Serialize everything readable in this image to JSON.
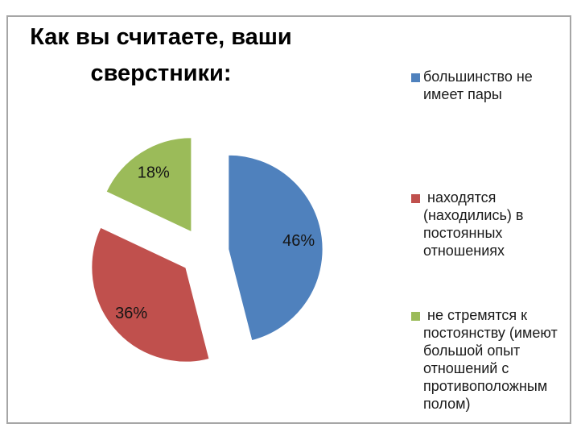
{
  "title": {
    "text": "Как вы считаете, ваши сверстники:",
    "wrapped": "Как вы считаете, ваши\nсверстники:"
  },
  "chart_data": {
    "type": "pie",
    "title": "Как вы считаете, ваши сверстники:",
    "start_angle_deg": 0,
    "direction": "clockwise",
    "exploded": true,
    "legend_position": "right",
    "data_label_format": "percent",
    "slices": [
      {
        "label": "большинство не имеет пары",
        "value": 46,
        "data_label": "46%",
        "color": "#4f81bd"
      },
      {
        "label": "находятся (находились) в постоянных отношениях",
        "value": 36,
        "data_label": "36%",
        "color": "#c0504d"
      },
      {
        "label": "не стремятся к постоянству (имеют большой опыт отношений с противоположным полом)",
        "value": 18,
        "data_label": "18%",
        "color": "#9bbb59"
      }
    ]
  },
  "legend": {
    "items": [
      {
        "wrapped": "большинство не\nимеет пары"
      },
      {
        "wrapped": " находятся\n(находились) в\nпостоянных\nотношениях"
      },
      {
        "wrapped": " не стремятся к\nпостоянству (имеют\nбольшой опыт\nотношений с\nпротивоположным\nполом)"
      }
    ]
  }
}
